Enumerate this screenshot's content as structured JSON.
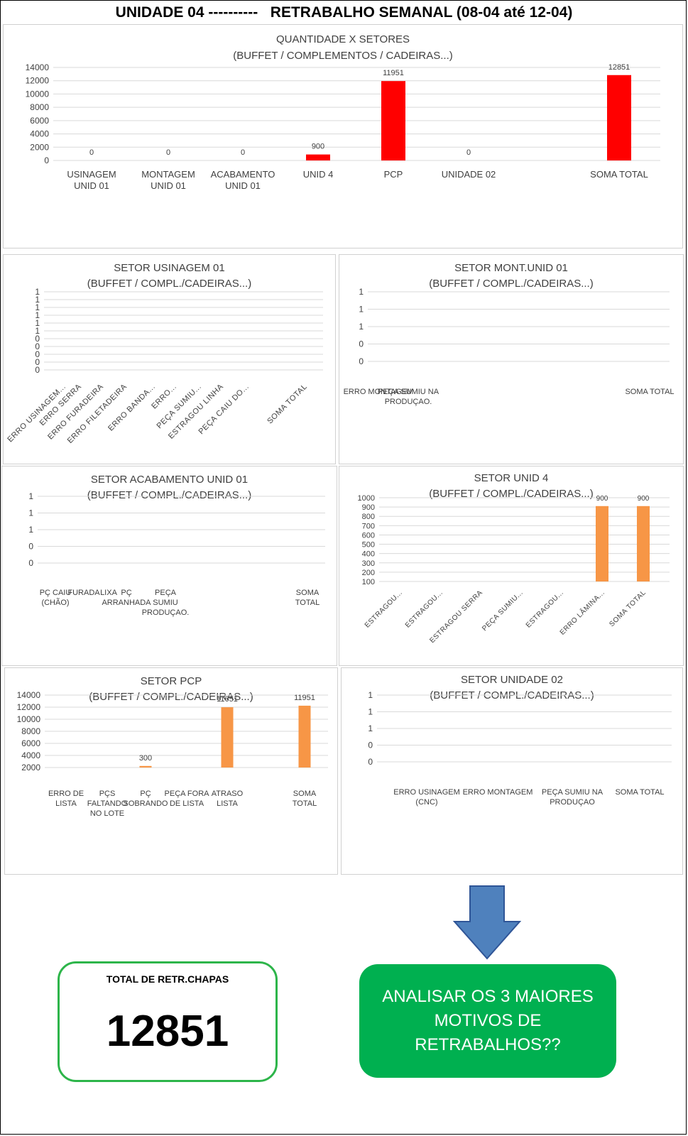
{
  "page_title": "UNIDADE 04 ----------   RETRABALHO SEMANAL (08-04 até 12-04)",
  "colors": {
    "red_bar": "#ff0000",
    "orange_bar": "#f79646",
    "arrow": "#4f81bd",
    "total_border": "#2db54a",
    "cta_bg": "#00b050"
  },
  "chart_data": [
    {
      "type": "bar",
      "title": "QUANTIDADE X SETORES",
      "subtitle": "(BUFFET / COMPLEMENTOS / CADEIRAS...)",
      "categories": [
        "USINAGEM UNID 01",
        "MONTAGEM UNID 01",
        "ACABAMENTO UNID 01",
        "UNID 4",
        "PCP",
        "UNIDADE 02",
        "SOMA TOTAL"
      ],
      "values": [
        0,
        0,
        0,
        900,
        11951,
        0,
        12851
      ],
      "data_labels": [
        "0",
        "0",
        "0",
        "900",
        "11951",
        "0",
        "12851"
      ],
      "y_ticks": [
        "0",
        "2000",
        "4000",
        "6000",
        "8000",
        "10000",
        "12000",
        "14000"
      ],
      "ylim": [
        0,
        14000
      ],
      "grid": true,
      "color": "#ff0000"
    },
    {
      "type": "bar",
      "title": "SETOR USINAGEM 01",
      "subtitle": "(BUFFET / COMPL./CADEIRAS...)",
      "categories": [
        "ERRO USINAGEM...",
        "ERRO SERRA",
        "ERRO FURADEIRA",
        "ERRO FILETADEIRA",
        "ERRO BANDA...",
        "ERRO...",
        "PEÇA SUMIU...",
        "ESTRAGOU LINHA",
        "PEÇA CAIU DO...",
        "SOMA TOTAL"
      ],
      "values": [
        0,
        0,
        0,
        0,
        0,
        0,
        0,
        0,
        0,
        0
      ],
      "y_ticks": [
        "0",
        "0",
        "0",
        "0",
        "0",
        "1",
        "1",
        "1",
        "1",
        "1",
        "1"
      ],
      "grid": true
    },
    {
      "type": "bar",
      "title": "SETOR  MONT.UNID 01",
      "subtitle": "(BUFFET / COMPL./CADEIRAS...)",
      "categories": [
        "ERRO MONTAGEM",
        "PEÇA SUMIU  NA PRODUÇAO.",
        "SOMA TOTAL"
      ],
      "values": [
        0,
        0,
        0
      ],
      "y_ticks": [
        "0",
        "0",
        "1",
        "1",
        "1"
      ],
      "grid": true
    },
    {
      "type": "bar",
      "title": "SETOR ACABAMENTO UNID 01",
      "subtitle": "(BUFFET / COMPL./CADEIRAS...)",
      "categories": [
        "PÇ CAIU (CHÃO)",
        "FURADA",
        "LIXA",
        "PÇ ARRANHADA",
        "PEÇA SUMIU PRODUÇAO.",
        "SOMA TOTAL"
      ],
      "values": [
        0,
        0,
        0,
        0,
        0,
        0
      ],
      "y_ticks": [
        "0",
        "0",
        "1",
        "1",
        "1"
      ],
      "grid": true
    },
    {
      "type": "bar",
      "title": "SETOR UNID 4",
      "subtitle": "(BUFFET / COMPL./CADEIRAS...)",
      "categories": [
        "ESTRAGOU...",
        "ESTRAGOU...",
        "ESTRAGOU SERRA",
        "PEÇA SUMIU...",
        "ESTRAGOU...",
        "ERRO LÂMINA...",
        "SOMA TOTAL"
      ],
      "values": [
        0,
        0,
        0,
        0,
        0,
        900,
        900
      ],
      "data_labels": [
        "",
        "",
        "",
        "",
        "",
        "900",
        "900"
      ],
      "y_ticks": [
        "100",
        "200",
        "300",
        "400",
        "500",
        "600",
        "700",
        "800",
        "900",
        "1000"
      ],
      "ylim": [
        0,
        1000
      ],
      "grid": true,
      "color": "#f79646"
    },
    {
      "type": "bar",
      "title": "SETOR PCP",
      "subtitle": "(BUFFET / COMPL./CADEIRAS...)",
      "categories": [
        "ERRO DE LISTA",
        "PÇS FALTANDO NO LOTE",
        "PÇ SOBRANDO",
        "PEÇA FORA DE LISTA",
        "ATRASO LISTA",
        "SOMA TOTAL"
      ],
      "values": [
        0,
        0,
        300,
        0,
        11651,
        11951
      ],
      "data_labels": [
        "",
        "",
        "300",
        "",
        "11651",
        "11951"
      ],
      "y_ticks": [
        "2000",
        "4000",
        "6000",
        "8000",
        "10000",
        "12000",
        "14000"
      ],
      "ylim": [
        0,
        14000
      ],
      "grid": true,
      "color": "#f79646"
    },
    {
      "type": "bar",
      "title": "SETOR  UNIDADE 02",
      "subtitle": "(BUFFET / COMPL./CADEIRAS...)",
      "categories": [
        "ERRO USINAGEM (CNC)",
        "ERRO MONTAGEM",
        "PEÇA SUMIU  NA PRODUÇAO",
        "SOMA TOTAL"
      ],
      "values": [
        0,
        0,
        0,
        0
      ],
      "y_ticks": [
        "0",
        "0",
        "1",
        "1",
        "1"
      ],
      "grid": true
    }
  ],
  "total_box": {
    "label": "TOTAL DE RETR.CHAPAS",
    "value": "12851"
  },
  "cta_box": {
    "text": "ANALISAR OS 3 MAIORES MOTIVOS DE RETRABALHOS??"
  },
  "arrow_icon": "down-arrow-icon"
}
